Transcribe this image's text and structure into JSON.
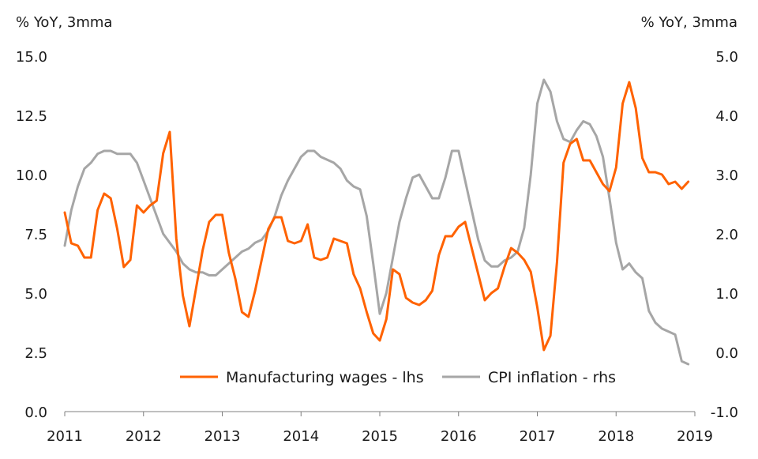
{
  "chart_data": {
    "type": "line",
    "title": "",
    "ylabel_left": "% YoY, 3mma",
    "ylabel_right": "% YoY, 3mma",
    "ylim_left": [
      0,
      15
    ],
    "ylim_right": [
      -1,
      5
    ],
    "y_ticks_left": [
      "0.0",
      "2.5",
      "5.0",
      "7.5",
      "10.0",
      "12.5",
      "15.0"
    ],
    "y_ticks_right": [
      "-1.0",
      "0.0",
      "1.0",
      "2.0",
      "3.0",
      "4.0",
      "5.0"
    ],
    "x_ticks": [
      "2011",
      "2012",
      "2013",
      "2014",
      "2015",
      "2016",
      "2017",
      "2018",
      "2019"
    ],
    "xlim": [
      2011.0,
      2019.0
    ],
    "grid": false,
    "legend_position": "bottom-center",
    "colors": {
      "wages": "#ff6200",
      "cpi": "#a6a6a6"
    },
    "series": [
      {
        "name": "Manufacturing wages - lhs",
        "axis": "left",
        "x": [
          "2011-01",
          "2011-02",
          "2011-03",
          "2011-04",
          "2011-05",
          "2011-06",
          "2011-07",
          "2011-08",
          "2011-09",
          "2011-10",
          "2011-11",
          "2011-12",
          "2012-01",
          "2012-02",
          "2012-03",
          "2012-04",
          "2012-05",
          "2012-06",
          "2012-07",
          "2012-08",
          "2012-09",
          "2012-10",
          "2012-11",
          "2012-12",
          "2013-01",
          "2013-02",
          "2013-03",
          "2013-04",
          "2013-05",
          "2013-06",
          "2013-07",
          "2013-08",
          "2013-09",
          "2013-10",
          "2013-11",
          "2013-12",
          "2014-01",
          "2014-02",
          "2014-03",
          "2014-04",
          "2014-05",
          "2014-06",
          "2014-07",
          "2014-08",
          "2014-09",
          "2014-10",
          "2014-11",
          "2014-12",
          "2015-01",
          "2015-02",
          "2015-03",
          "2015-04",
          "2015-05",
          "2015-06",
          "2015-07",
          "2015-08",
          "2015-09",
          "2015-10",
          "2015-11",
          "2015-12",
          "2016-01",
          "2016-02",
          "2016-03",
          "2016-04",
          "2016-05",
          "2016-06",
          "2016-07",
          "2016-08",
          "2016-09",
          "2016-10",
          "2016-11",
          "2016-12",
          "2017-01",
          "2017-02",
          "2017-03",
          "2017-04",
          "2017-05",
          "2017-06",
          "2017-07",
          "2017-08",
          "2017-09",
          "2017-10",
          "2017-11",
          "2017-12",
          "2018-01",
          "2018-02",
          "2018-03",
          "2018-04",
          "2018-05",
          "2018-06",
          "2018-07",
          "2018-08",
          "2018-09",
          "2018-10",
          "2018-11",
          "2018-12"
        ],
        "values": [
          8.4,
          7.1,
          7.0,
          6.5,
          6.5,
          8.5,
          9.2,
          9.0,
          7.7,
          6.1,
          6.4,
          8.7,
          8.4,
          8.7,
          8.9,
          10.9,
          11.8,
          7.3,
          4.9,
          3.6,
          5.2,
          6.8,
          8.0,
          8.3,
          8.3,
          6.7,
          5.6,
          4.2,
          4.0,
          5.1,
          6.4,
          7.7,
          8.2,
          8.2,
          7.2,
          7.1,
          7.2,
          7.9,
          6.5,
          6.4,
          6.5,
          7.3,
          7.2,
          7.1,
          5.8,
          5.2,
          4.2,
          3.3,
          3.0,
          3.9,
          6.0,
          5.8,
          4.8,
          4.6,
          4.5,
          4.7,
          5.1,
          6.6,
          7.4,
          7.4,
          7.8,
          8.0,
          6.9,
          5.8,
          4.7,
          5.0,
          5.2,
          6.1,
          6.9,
          6.7,
          6.4,
          5.9,
          4.4,
          2.6,
          3.2,
          6.3,
          10.5,
          11.3,
          11.5,
          10.6,
          10.6,
          10.1,
          9.6,
          9.3,
          10.3,
          13.0,
          13.9,
          12.8,
          10.7,
          10.1,
          10.1,
          10.0,
          9.6,
          9.7,
          9.4,
          9.7
        ]
      },
      {
        "name": "CPI inflation - rhs",
        "axis": "right",
        "x": [
          "2011-01",
          "2011-02",
          "2011-03",
          "2011-04",
          "2011-05",
          "2011-06",
          "2011-07",
          "2011-08",
          "2011-09",
          "2011-10",
          "2011-11",
          "2011-12",
          "2012-01",
          "2012-02",
          "2012-03",
          "2012-04",
          "2012-05",
          "2012-06",
          "2012-07",
          "2012-08",
          "2012-09",
          "2012-10",
          "2012-11",
          "2012-12",
          "2013-01",
          "2013-02",
          "2013-03",
          "2013-04",
          "2013-05",
          "2013-06",
          "2013-07",
          "2013-08",
          "2013-09",
          "2013-10",
          "2013-11",
          "2013-12",
          "2014-01",
          "2014-02",
          "2014-03",
          "2014-04",
          "2014-05",
          "2014-06",
          "2014-07",
          "2014-08",
          "2014-09",
          "2014-10",
          "2014-11",
          "2014-12",
          "2015-01",
          "2015-02",
          "2015-03",
          "2015-04",
          "2015-05",
          "2015-06",
          "2015-07",
          "2015-08",
          "2015-09",
          "2015-10",
          "2015-11",
          "2015-12",
          "2016-01",
          "2016-02",
          "2016-03",
          "2016-04",
          "2016-05",
          "2016-06",
          "2016-07",
          "2016-08",
          "2016-09",
          "2016-10",
          "2016-11",
          "2016-12",
          "2017-01",
          "2017-02",
          "2017-03",
          "2017-04",
          "2017-05",
          "2017-06",
          "2017-07",
          "2017-08",
          "2017-09",
          "2017-10",
          "2017-11",
          "2017-12",
          "2018-01",
          "2018-02",
          "2018-03",
          "2018-04",
          "2018-05",
          "2018-06",
          "2018-07",
          "2018-08",
          "2018-09",
          "2018-10",
          "2018-11",
          "2018-12"
        ],
        "values": [
          1.8,
          2.4,
          2.8,
          3.1,
          3.2,
          3.35,
          3.4,
          3.4,
          3.35,
          3.35,
          3.35,
          3.2,
          2.9,
          2.6,
          2.3,
          2.0,
          1.85,
          1.7,
          1.5,
          1.4,
          1.35,
          1.35,
          1.3,
          1.3,
          1.4,
          1.5,
          1.6,
          1.7,
          1.75,
          1.85,
          1.9,
          2.05,
          2.3,
          2.65,
          2.9,
          3.1,
          3.3,
          3.4,
          3.4,
          3.3,
          3.25,
          3.2,
          3.1,
          2.9,
          2.8,
          2.75,
          2.3,
          1.5,
          0.65,
          1.0,
          1.6,
          2.2,
          2.6,
          2.95,
          3.0,
          2.8,
          2.6,
          2.6,
          2.95,
          3.4,
          3.4,
          2.9,
          2.4,
          1.9,
          1.55,
          1.45,
          1.45,
          1.55,
          1.6,
          1.7,
          2.1,
          3.0,
          4.2,
          4.6,
          4.4,
          3.9,
          3.6,
          3.55,
          3.75,
          3.9,
          3.85,
          3.65,
          3.3,
          2.6,
          1.85,
          1.4,
          1.5,
          1.35,
          1.25,
          0.7,
          0.5,
          0.4,
          0.35,
          0.3,
          -0.15,
          -0.2
        ]
      }
    ]
  }
}
